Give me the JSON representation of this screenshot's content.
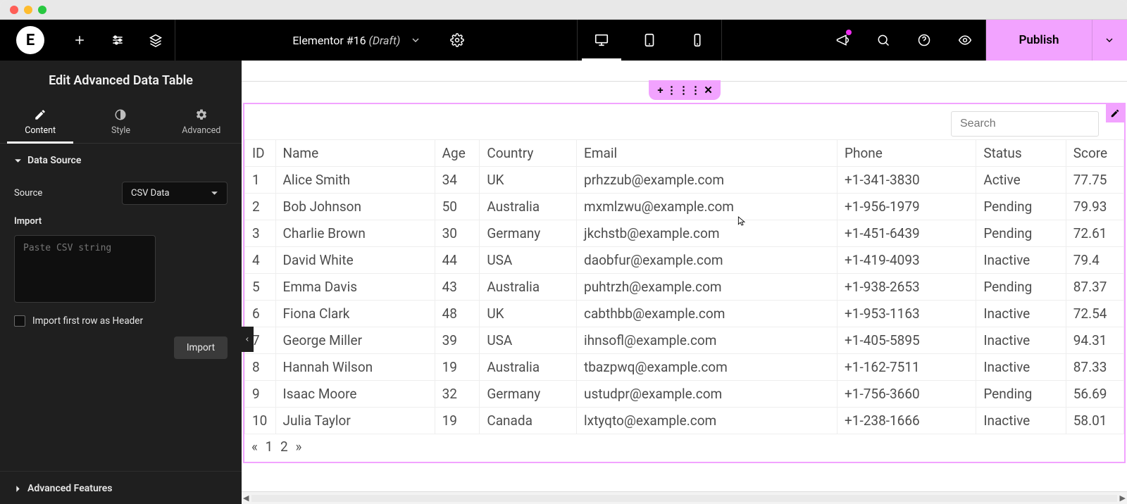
{
  "document": {
    "title": "Elementor #16",
    "status": "(Draft)"
  },
  "topbar": {
    "publish": "Publish"
  },
  "panel": {
    "title": "Edit Advanced Data Table",
    "tabs": {
      "content": "Content",
      "style": "Style",
      "advanced": "Advanced"
    },
    "section_data_source": "Data Source",
    "source_label": "Source",
    "source_value": "CSV Data",
    "import_label": "Import",
    "csv_placeholder": "Paste CSV string",
    "import_first_row": "Import first row as Header",
    "import_btn": "Import",
    "section_advanced_features": "Advanced Features"
  },
  "search": {
    "placeholder": "Search"
  },
  "table": {
    "columns": [
      "ID",
      "Name",
      "Age",
      "Country",
      "Email",
      "Phone",
      "Status",
      "Score"
    ],
    "rows": [
      [
        "1",
        "Alice Smith",
        "34",
        "UK",
        "prhzzub@example.com",
        "+1-341-3830",
        "Active",
        "77.75"
      ],
      [
        "2",
        "Bob Johnson",
        "50",
        "Australia",
        "mxmlzwu@example.com",
        "+1-956-1979",
        "Pending",
        "79.93"
      ],
      [
        "3",
        "Charlie Brown",
        "30",
        "Germany",
        "jkchstb@example.com",
        "+1-451-6439",
        "Pending",
        "72.61"
      ],
      [
        "4",
        "David White",
        "44",
        "USA",
        "daobfur@example.com",
        "+1-419-4093",
        "Inactive",
        "79.4"
      ],
      [
        "5",
        "Emma Davis",
        "43",
        "Australia",
        "puhtrzh@example.com",
        "+1-938-2653",
        "Pending",
        "87.37"
      ],
      [
        "6",
        "Fiona Clark",
        "48",
        "UK",
        "cabthbb@example.com",
        "+1-953-1163",
        "Inactive",
        "72.54"
      ],
      [
        "7",
        "George Miller",
        "39",
        "USA",
        "ihnsofl@example.com",
        "+1-405-5895",
        "Inactive",
        "94.31"
      ],
      [
        "8",
        "Hannah Wilson",
        "19",
        "Australia",
        "tbazpwq@example.com",
        "+1-162-7511",
        "Inactive",
        "87.33"
      ],
      [
        "9",
        "Isaac Moore",
        "32",
        "Germany",
        "ustudpr@example.com",
        "+1-756-3660",
        "Pending",
        "56.69"
      ],
      [
        "10",
        "Julia Taylor",
        "19",
        "Canada",
        "lxtyqto@example.com",
        "+1-238-1666",
        "Inactive",
        "58.01"
      ]
    ]
  },
  "pagination": {
    "prev": "«",
    "p1": "1",
    "p2": "2",
    "next": "»"
  },
  "section_handle": {
    "add": "+",
    "drag": "⋮⋮⋮",
    "close": "✕"
  }
}
